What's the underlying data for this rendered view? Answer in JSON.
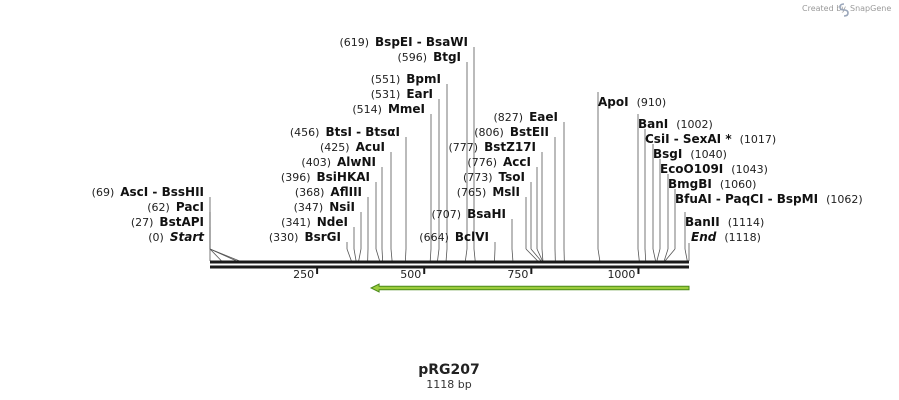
{
  "branding": {
    "credit_text": "Created by",
    "app_name": "SnapGene",
    "logo_icon": "snapgene-logo-icon"
  },
  "plasmid": {
    "name": "pRG207",
    "length_label": "1118 bp",
    "length_bp": 1118
  },
  "axis": {
    "ticks": [
      {
        "value": 250,
        "label": "250"
      },
      {
        "value": 500,
        "label": "500"
      },
      {
        "value": 750,
        "label": "750"
      },
      {
        "value": 1000,
        "label": "1000"
      }
    ]
  },
  "feature": {
    "start_bp": 376,
    "end_bp": 1118,
    "direction": "reverse",
    "color": "#9ccc3c",
    "border_color": "#4a8a1a"
  },
  "colors": {
    "backbone": "#1a1a1a",
    "tick_line": "#333333"
  },
  "sites": [
    {
      "pos": 0,
      "pos_label": "(0)",
      "names": [
        "Start"
      ],
      "side": "left",
      "italic": true
    },
    {
      "pos": 27,
      "pos_label": "(27)",
      "names": [
        "BstAPI"
      ],
      "side": "left"
    },
    {
      "pos": 62,
      "pos_label": "(62)",
      "names": [
        "PacI"
      ],
      "side": "left"
    },
    {
      "pos": 69,
      "pos_label": "(69)",
      "names": [
        "AscI",
        "BssHII"
      ],
      "side": "left"
    },
    {
      "pos": 330,
      "pos_label": "(330)",
      "names": [
        "BsrGI"
      ],
      "side": "left"
    },
    {
      "pos": 341,
      "pos_label": "(341)",
      "names": [
        "NdeI"
      ],
      "side": "left"
    },
    {
      "pos": 347,
      "pos_label": "(347)",
      "names": [
        "NsiI"
      ],
      "side": "left"
    },
    {
      "pos": 368,
      "pos_label": "(368)",
      "names": [
        "AflIII"
      ],
      "side": "left"
    },
    {
      "pos": 396,
      "pos_label": "(396)",
      "names": [
        "BsiHKAI"
      ],
      "side": "left"
    },
    {
      "pos": 403,
      "pos_label": "(403)",
      "names": [
        "AlwNI"
      ],
      "side": "left"
    },
    {
      "pos": 425,
      "pos_label": "(425)",
      "names": [
        "AcuI"
      ],
      "side": "left"
    },
    {
      "pos": 456,
      "pos_label": "(456)",
      "names": [
        "BtsI",
        "BtsαI"
      ],
      "side": "left"
    },
    {
      "pos": 514,
      "pos_label": "(514)",
      "names": [
        "MmeI"
      ],
      "side": "left"
    },
    {
      "pos": 531,
      "pos_label": "(531)",
      "names": [
        "EarI"
      ],
      "side": "left"
    },
    {
      "pos": 551,
      "pos_label": "(551)",
      "names": [
        "BpmI"
      ],
      "side": "left"
    },
    {
      "pos": 596,
      "pos_label": "(596)",
      "names": [
        "BtgI"
      ],
      "side": "left"
    },
    {
      "pos": 619,
      "pos_label": "(619)",
      "names": [
        "BspEI",
        "BsaWI"
      ],
      "side": "left"
    },
    {
      "pos": 664,
      "pos_label": "(664)",
      "names": [
        "BclVI"
      ],
      "side": "left"
    },
    {
      "pos": 707,
      "pos_label": "(707)",
      "names": [
        "BsaHI"
      ],
      "side": "left"
    },
    {
      "pos": 765,
      "pos_label": "(765)",
      "names": [
        "MslI"
      ],
      "side": "left"
    },
    {
      "pos": 773,
      "pos_label": "(773)",
      "names": [
        "TsoI"
      ],
      "side": "left"
    },
    {
      "pos": 776,
      "pos_label": "(776)",
      "names": [
        "AccI"
      ],
      "side": "left"
    },
    {
      "pos": 777,
      "pos_label": "(777)",
      "names": [
        "BstZ17I"
      ],
      "side": "left"
    },
    {
      "pos": 806,
      "pos_label": "(806)",
      "names": [
        "BstEII"
      ],
      "side": "left"
    },
    {
      "pos": 827,
      "pos_label": "(827)",
      "names": [
        "EaeI"
      ],
      "side": "left"
    },
    {
      "pos": 910,
      "pos_label": "(910)",
      "names": [
        "ApoI"
      ],
      "side": "right"
    },
    {
      "pos": 1002,
      "pos_label": "(1002)",
      "names": [
        "BanI"
      ],
      "side": "right"
    },
    {
      "pos": 1017,
      "pos_label": "(1017)",
      "names": [
        "CsiI",
        "SexAI *"
      ],
      "side": "right"
    },
    {
      "pos": 1040,
      "pos_label": "(1040)",
      "names": [
        "BsgI"
      ],
      "side": "right"
    },
    {
      "pos": 1043,
      "pos_label": "(1043)",
      "names": [
        "EcoO109I"
      ],
      "side": "right"
    },
    {
      "pos": 1060,
      "pos_label": "(1060)",
      "names": [
        "BmgBI"
      ],
      "side": "right"
    },
    {
      "pos": 1062,
      "pos_label": "(1062)",
      "names": [
        "BfuAI",
        "PaqCI",
        "BspMI"
      ],
      "side": "right"
    },
    {
      "pos": 1114,
      "pos_label": "(1114)",
      "names": [
        "BanII"
      ],
      "side": "right"
    },
    {
      "pos": 1118,
      "pos_label": "(1118)",
      "names": [
        "End"
      ],
      "side": "right",
      "italic": true
    }
  ]
}
